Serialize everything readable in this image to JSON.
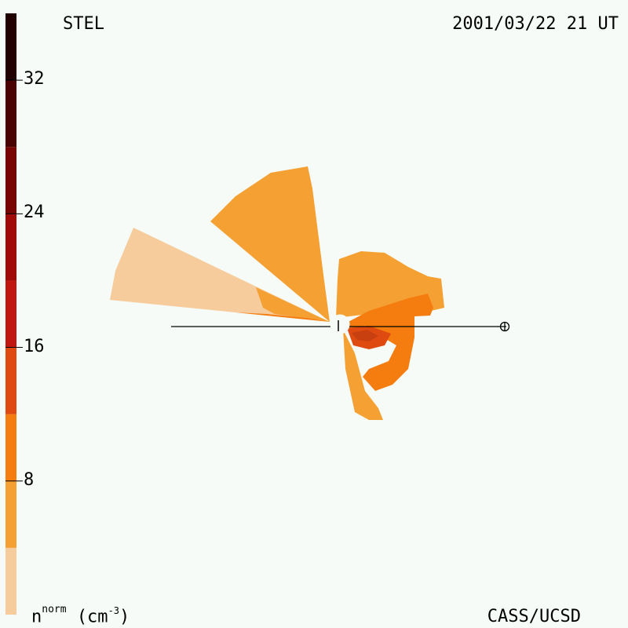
{
  "header": {
    "instrument": "STEL",
    "datetime": "2001/03/22 21 UT"
  },
  "footer": {
    "credit": "CASS/UCSD",
    "unit_base": "n",
    "unit_sup": "norm",
    "unit_text": "(cm",
    "unit_exp": "-3",
    "unit_close": ")"
  },
  "chart_data": {
    "type": "heatmap",
    "title": "STEL 2001/03/22 21 UT",
    "colorbar": {
      "label": "n^norm (cm^-3)",
      "range": [
        0,
        36
      ],
      "ticks": [
        "8",
        "16",
        "24",
        "32"
      ],
      "levels": [
        {
          "from": 0,
          "to": 4,
          "color": "#f6cc9c"
        },
        {
          "from": 4,
          "to": 8,
          "color": "#f5a033"
        },
        {
          "from": 8,
          "to": 12,
          "color": "#f57d10"
        },
        {
          "from": 12,
          "to": 16,
          "color": "#de4a10"
        },
        {
          "from": 16,
          "to": 20,
          "color": "#c01810"
        },
        {
          "from": 20,
          "to": 24,
          "color": "#a00a08"
        },
        {
          "from": 24,
          "to": 28,
          "color": "#780404"
        },
        {
          "from": 28,
          "to": 32,
          "color": "#4a0202"
        },
        {
          "from": 32,
          "to": 36,
          "color": "#200000"
        }
      ]
    },
    "markers": [
      "Sun",
      "Earth"
    ]
  }
}
